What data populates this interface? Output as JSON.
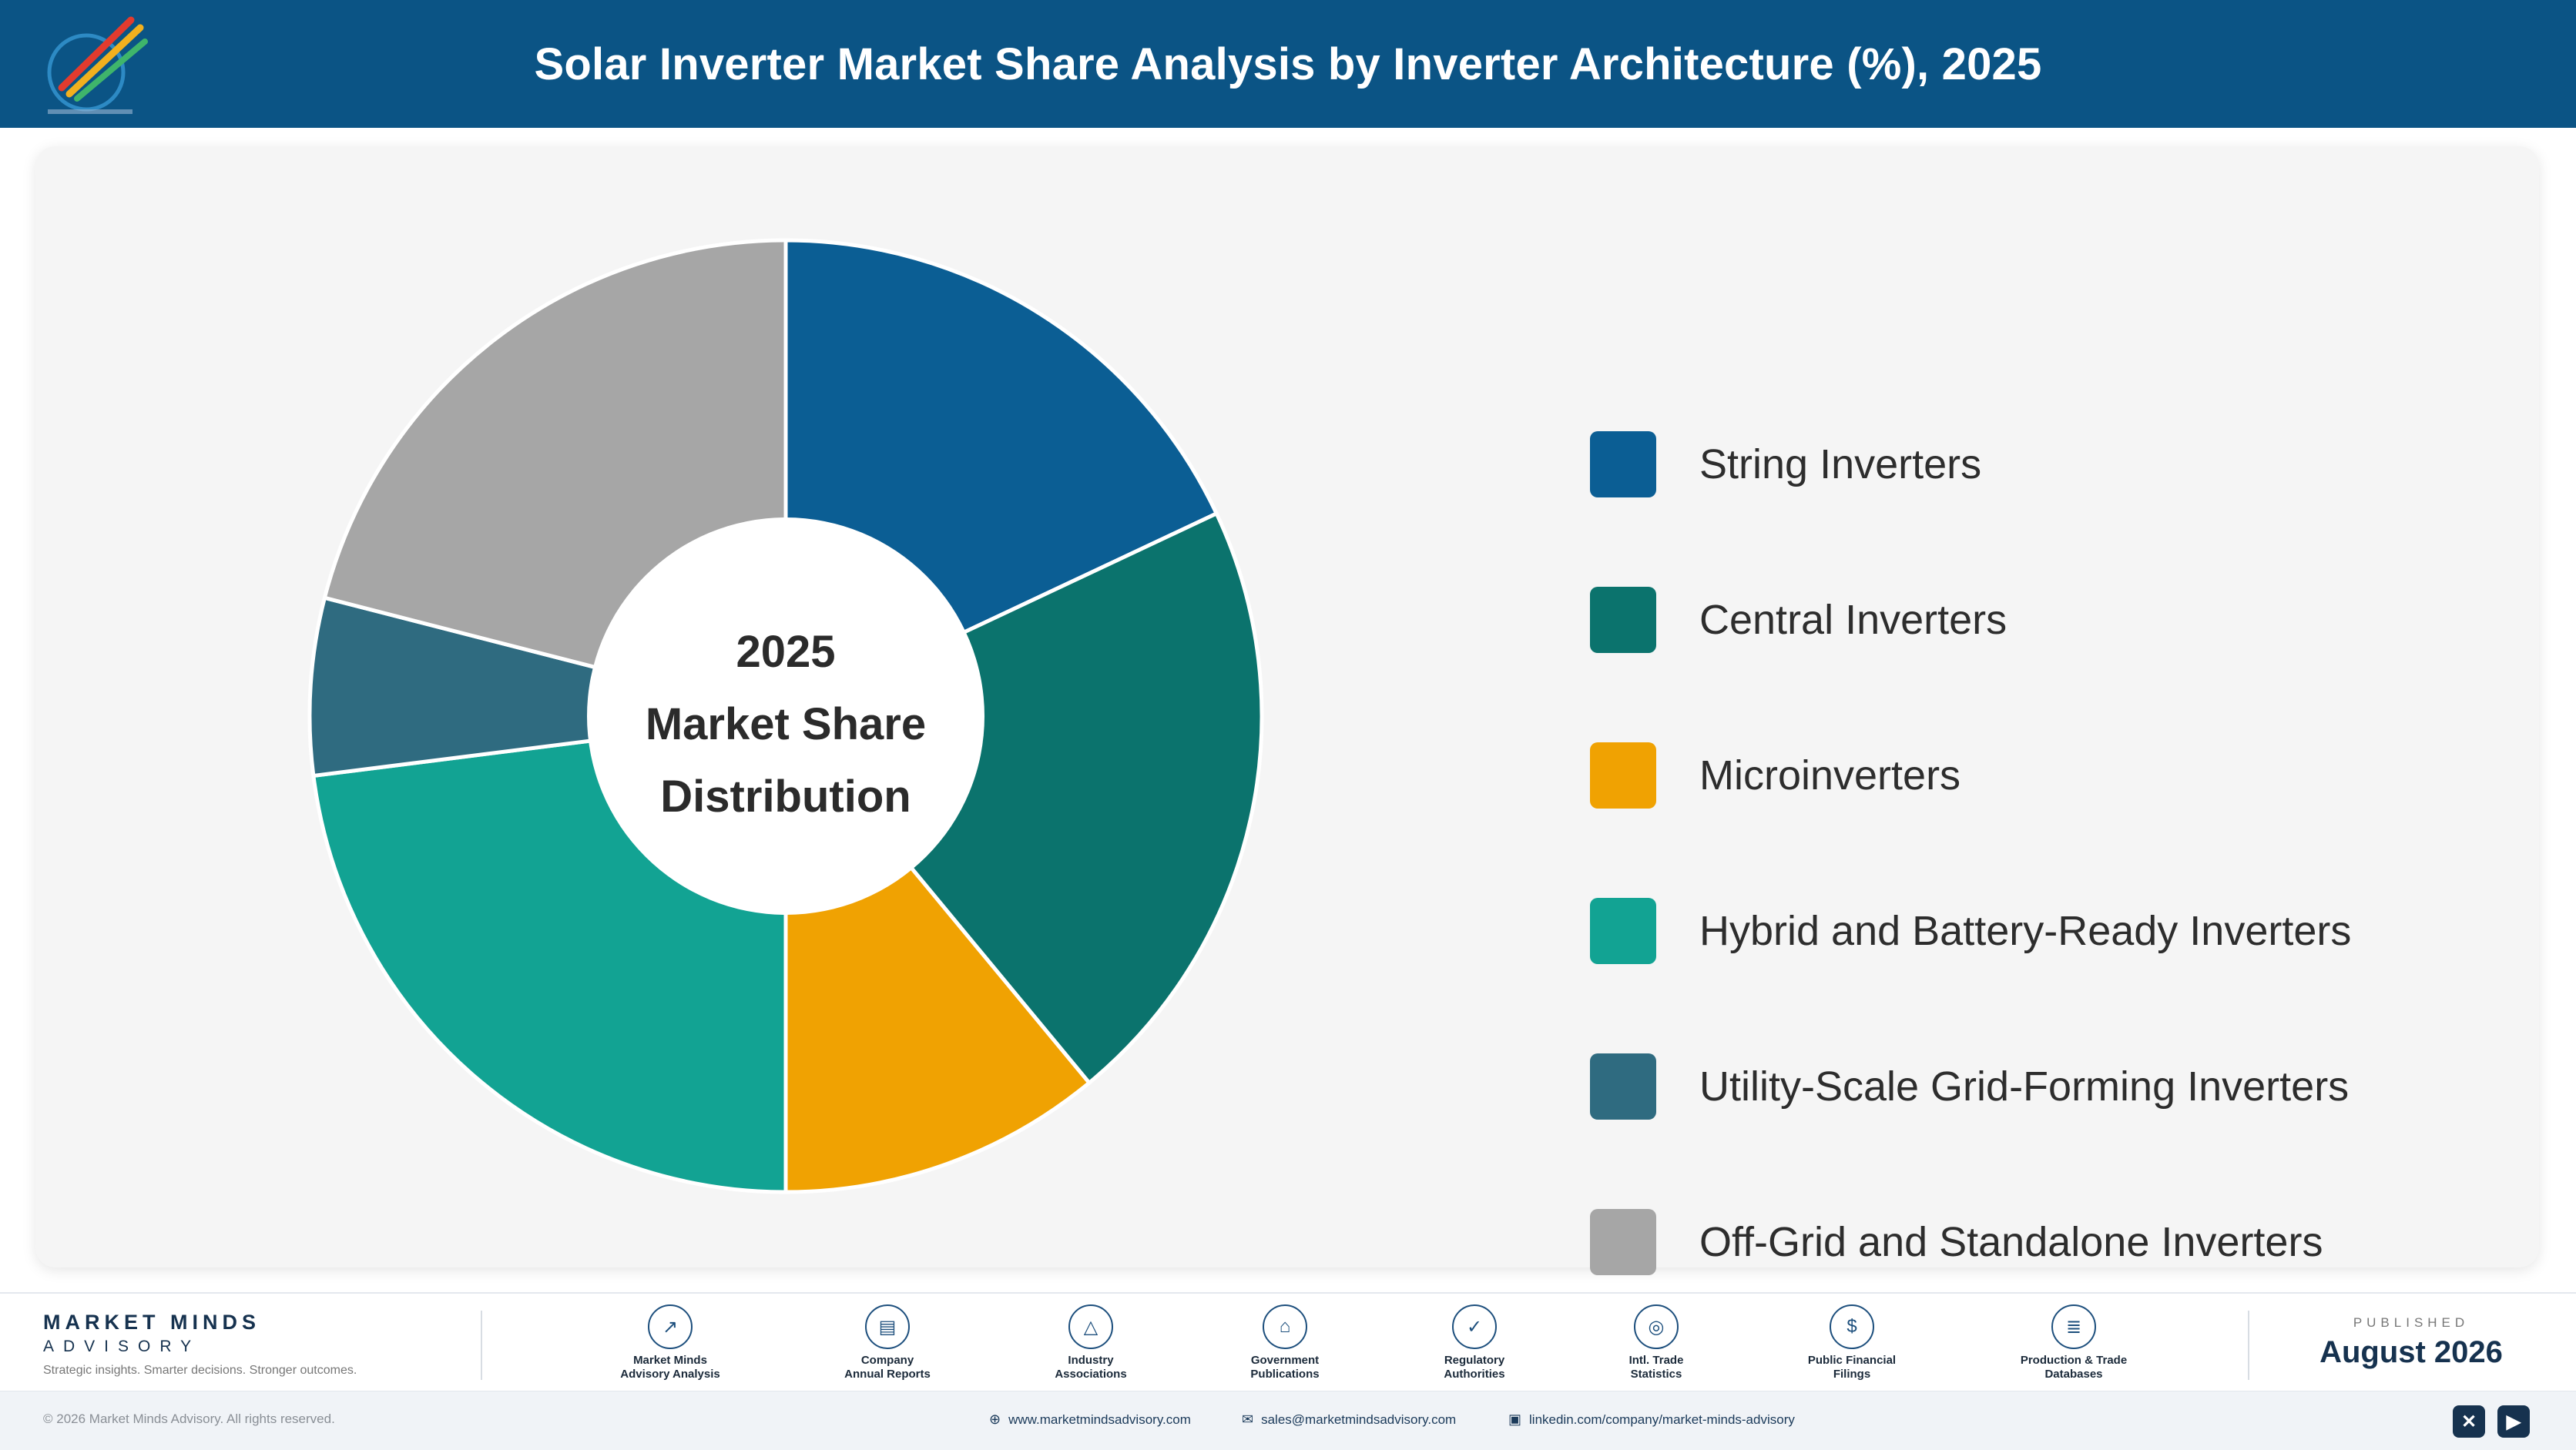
{
  "header": {
    "title": "Solar Inverter Market Share Analysis by Inverter Architecture (%), 2025",
    "logo_icon": "rocket-logo-icon",
    "background": "#0b5485"
  },
  "chart_data": {
    "type": "pie",
    "title": "Solar Inverter Market Share Analysis by Inverter Architecture (%), 2025",
    "center_label": [
      "2025",
      "Market Share",
      "Distribution"
    ],
    "categories": [
      "String Inverters",
      "Central Inverters",
      "Microinverters",
      "Hybrid and Battery-Ready Inverters",
      "Utility-Scale Grid-Forming Inverters",
      "Off-Grid and Standalone Inverters"
    ],
    "values": [
      18,
      21,
      11,
      23,
      6,
      21
    ],
    "colors": [
      "#0b5e94",
      "#0b736d",
      "#f0a202",
      "#12a393",
      "#2f6b80",
      "#a6a6a6"
    ],
    "legend_position": "right",
    "donut": true
  },
  "legend": {
    "items": [
      {
        "label": "String Inverters",
        "color": "#0b5e94"
      },
      {
        "label": "Central Inverters",
        "color": "#0b736d"
      },
      {
        "label": "Microinverters",
        "color": "#f0a202"
      },
      {
        "label": "Hybrid and Battery-Ready Inverters",
        "color": "#12a393"
      },
      {
        "label": "Utility-Scale Grid-Forming Inverters",
        "color": "#2f6b80"
      },
      {
        "label": "Off-Grid and Standalone Inverters",
        "color": "#a6a6a6"
      }
    ]
  },
  "footer": {
    "brand_name": "MARKET MINDS",
    "brand_sub": "ADVISORY",
    "brand_tagline": "Strategic insights. Smarter decisions. Stronger outcomes.",
    "sources": [
      {
        "label": "Market Minds\nAdvisory Analysis",
        "icon": "trend-chart-icon",
        "glyph": "↗"
      },
      {
        "label": "Company\nAnnual Reports",
        "icon": "document-icon",
        "glyph": "▤"
      },
      {
        "label": "Industry\nAssociations",
        "icon": "network-icon",
        "glyph": "△"
      },
      {
        "label": "Government\nPublications",
        "icon": "government-building-icon",
        "glyph": "⌂"
      },
      {
        "label": "Regulatory\nAuthorities",
        "icon": "shield-check-icon",
        "glyph": "✓"
      },
      {
        "label": "Intl. Trade\nStatistics",
        "icon": "globe-icon",
        "glyph": "◎"
      },
      {
        "label": "Public Financial\nFilings",
        "icon": "dollar-coin-icon",
        "glyph": "$"
      },
      {
        "label": "Production & Trade\nDatabases",
        "icon": "database-icon",
        "glyph": "≣"
      }
    ],
    "published_label": "PUBLISHED",
    "published_date": "August 2026"
  },
  "bottombar": {
    "copyright": "© 2026 Market Minds Advisory. All rights reserved.",
    "website": "www.marketmindsadvisory.com",
    "email": "sales@marketmindsadvisory.com",
    "linkedin": "linkedin.com/company/market-minds-advisory",
    "social_x_glyph": "✕",
    "social_video_glyph": "▶"
  }
}
